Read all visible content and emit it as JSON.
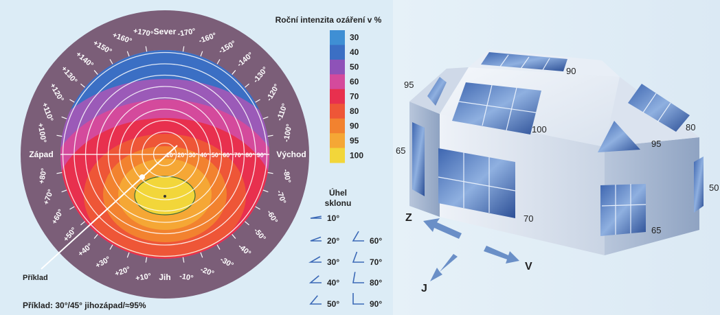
{
  "legend": {
    "title": "Roční intenzita ozáření v %",
    "entries": [
      {
        "label": "30",
        "color": "#3f8fd4"
      },
      {
        "label": "40",
        "color": "#3b6fc4"
      },
      {
        "label": "50",
        "color": "#8e52b8"
      },
      {
        "label": "60",
        "color": "#d44a9c"
      },
      {
        "label": "70",
        "color": "#e8304e"
      },
      {
        "label": "80",
        "color": "#ee5637"
      },
      {
        "label": "90",
        "color": "#f2822f"
      },
      {
        "label": "95",
        "color": "#f5a735"
      },
      {
        "label": "100",
        "color": "#f2d63a"
      }
    ]
  },
  "dial": {
    "north": "Sever",
    "south": "Jih",
    "west": "Západ",
    "east": "Východ",
    "tilt_labels": [
      "10°",
      "20°",
      "30°",
      "40°",
      "50°",
      "60°",
      "70°",
      "80°",
      "90°"
    ],
    "angle_labels": [
      "+10°",
      "+20°",
      "+30°",
      "+40°",
      "+50°",
      "+60°",
      "+70°",
      "+80°",
      "+100°",
      "+110°",
      "+120°",
      "+130°",
      "+140°",
      "+150°",
      "+160°",
      "+170°",
      "-170°",
      "-160°",
      "-150°",
      "-140°",
      "-130°",
      "-120°",
      "-110°",
      "-100°",
      "-80°",
      "-70°",
      "-60°",
      "-50°",
      "-40°",
      "-30°",
      "-20°",
      "-10°"
    ],
    "example_pointer": "Příklad",
    "example_caption": "Příklad: 30°/45° jihozápad/≈95%"
  },
  "tilt_legend": {
    "title_line1": "Úhel",
    "title_line2": "sklonu",
    "items": [
      "10°",
      "20°",
      "30°",
      "40°",
      "50°",
      "60°",
      "70°",
      "80°",
      "90°"
    ]
  },
  "house": {
    "labels": [
      "90",
      "95",
      "100",
      "80",
      "95",
      "65",
      "70",
      "65",
      "50"
    ],
    "directions": {
      "west": "Z",
      "east": "V",
      "south": "J"
    }
  }
}
